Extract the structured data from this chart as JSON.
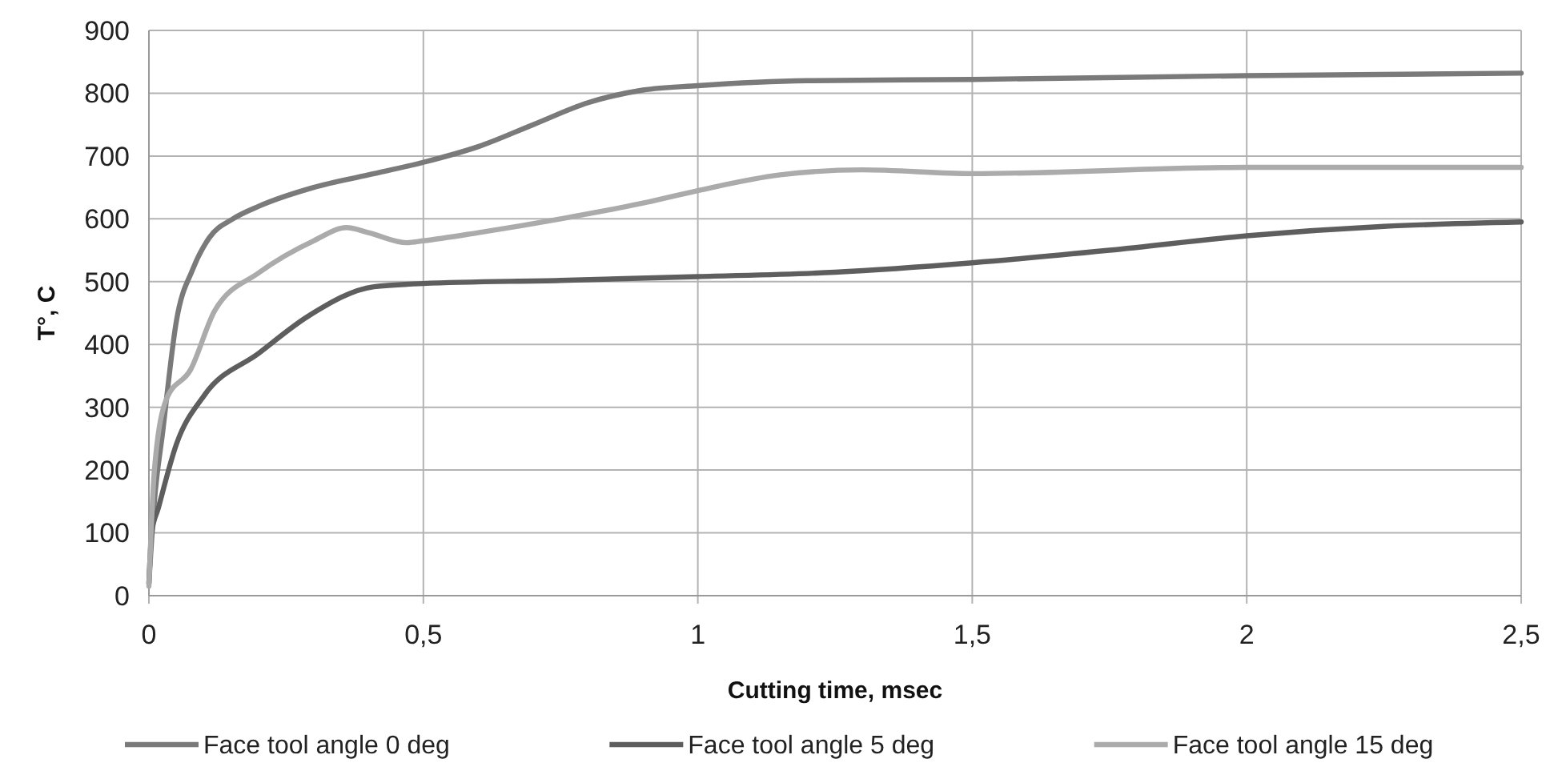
{
  "chart_data": {
    "type": "line",
    "xlabel": "Cutting time, msec",
    "ylabel": "T°, C",
    "xlim": [
      0,
      2.5
    ],
    "ylim": [
      0,
      900
    ],
    "xticks": [
      0,
      {
        "value": 0.5,
        "label": "0,5"
      },
      1,
      {
        "value": 1.5,
        "label": "1,5"
      },
      2,
      {
        "value": 2.5,
        "label": "2,5"
      }
    ],
    "yticks": [
      0,
      100,
      200,
      300,
      400,
      500,
      600,
      700,
      800,
      900
    ],
    "grid": true,
    "legend": "bottom",
    "marker": "none",
    "line_style": "solid",
    "series": [
      {
        "name": "Face tool angle 0 deg",
        "color": "#7a7a7a",
        "x": [
          0,
          0.01,
          0.025,
          0.05,
          0.08,
          0.11,
          0.153,
          0.2,
          0.3,
          0.4,
          0.5,
          0.6,
          0.7,
          0.8,
          0.9,
          1.0,
          1.2,
          1.5,
          2.0,
          2.5
        ],
        "values": [
          20,
          150,
          260,
          437,
          520,
          570,
          600,
          620,
          650,
          670,
          690,
          715,
          750,
          785,
          805,
          812,
          820,
          822,
          828,
          832
        ]
      },
      {
        "name": "Face tool angle 5 deg",
        "color": "#5e5e5e",
        "x": [
          0,
          0.005,
          0.017,
          0.05,
          0.1,
          0.2,
          0.29,
          0.41,
          0.5,
          0.75,
          1.0,
          1.25,
          1.5,
          1.75,
          2.0,
          2.25,
          2.5
        ],
        "values": [
          20,
          100,
          139,
          241,
          318,
          386,
          445,
          492,
          497,
          502,
          508,
          515,
          530,
          550,
          573,
          588,
          595
        ]
      },
      {
        "name": "Face tool angle 15 deg",
        "color": "#ababab",
        "x": [
          0,
          0.01,
          0.032,
          0.076,
          0.12,
          0.2,
          0.3,
          0.36,
          0.4,
          0.47,
          0.5,
          0.6,
          0.75,
          0.9,
          1.0,
          1.15,
          1.3,
          1.5,
          2.0,
          2.5
        ],
        "values": [
          15,
          200,
          313,
          360,
          454,
          514,
          565,
          586,
          578,
          562,
          565,
          578,
          600,
          625,
          645,
          670,
          678,
          672,
          682,
          682
        ]
      }
    ]
  }
}
